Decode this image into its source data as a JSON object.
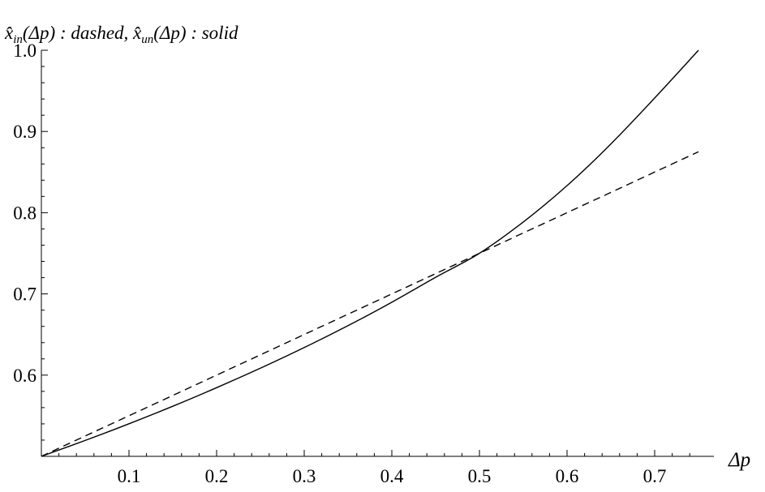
{
  "chart_data": {
    "type": "line",
    "title": {
      "series1_symbol": "x̂",
      "series1_subscript": "in",
      "series1_arg": "(Δp) : dashed, ",
      "series2_symbol": "x̂",
      "series2_subscript": "un",
      "series2_arg": "(Δp) : solid"
    },
    "xlabel": "Δp",
    "ylabel": "",
    "xlim": [
      0,
      0.75
    ],
    "ylim": [
      0.5,
      1.0
    ],
    "x_ticks": [
      0.1,
      0.2,
      0.3,
      0.4,
      0.5,
      0.6,
      0.7
    ],
    "x_tick_labels": [
      "0.1",
      "0.2",
      "0.3",
      "0.4",
      "0.5",
      "0.6",
      "0.7"
    ],
    "y_ticks": [
      0.6,
      0.7,
      0.8,
      0.9,
      1.0
    ],
    "y_tick_labels": [
      "0.6",
      "0.7",
      "0.8",
      "0.9",
      "1.0"
    ],
    "grid": false,
    "series": [
      {
        "style": "dashed",
        "x": [
          0,
          0.05,
          0.1,
          0.15,
          0.2,
          0.25,
          0.3,
          0.35,
          0.4,
          0.45,
          0.5,
          0.55,
          0.6,
          0.65,
          0.7,
          0.75
        ],
        "values": [
          0.5,
          0.525,
          0.55,
          0.575,
          0.6,
          0.625,
          0.65,
          0.675,
          0.7,
          0.725,
          0.75,
          0.775,
          0.8,
          0.825,
          0.85,
          0.875
        ]
      },
      {
        "style": "solid",
        "x": [
          0,
          0.05,
          0.1,
          0.15,
          0.2,
          0.25,
          0.3,
          0.35,
          0.4,
          0.45,
          0.5,
          0.55,
          0.6,
          0.65,
          0.7,
          0.75
        ],
        "values": [
          0.5,
          0.5196,
          0.5401,
          0.5617,
          0.5845,
          0.6085,
          0.6339,
          0.6609,
          0.6897,
          0.7205,
          0.75,
          0.7885,
          0.8333,
          0.8846,
          0.9412,
          1.0
        ]
      }
    ]
  }
}
